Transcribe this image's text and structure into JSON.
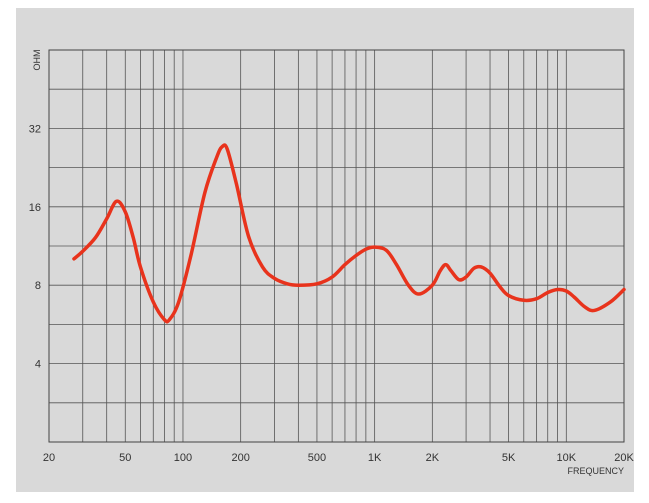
{
  "chart_data": {
    "type": "line",
    "title": "",
    "xlabel": "FREQUENCY",
    "ylabel": "OHM",
    "x_scale": "log",
    "y_scale": "log",
    "xlim": [
      20,
      20000
    ],
    "ylim": [
      2,
      64
    ],
    "x_tick_labels": [
      {
        "value": 20,
        "label": "20"
      },
      {
        "value": 50,
        "label": "50"
      },
      {
        "value": 100,
        "label": "100"
      },
      {
        "value": 200,
        "label": "200"
      },
      {
        "value": 500,
        "label": "500"
      },
      {
        "value": 1000,
        "label": "1K"
      },
      {
        "value": 2000,
        "label": "2K"
      },
      {
        "value": 5000,
        "label": "5K"
      },
      {
        "value": 10000,
        "label": "10K"
      },
      {
        "value": 20000,
        "label": "20K"
      }
    ],
    "y_tick_labels": [
      {
        "value": 4,
        "label": "4"
      },
      {
        "value": 8,
        "label": "8"
      },
      {
        "value": 16,
        "label": "16"
      },
      {
        "value": 32,
        "label": "32"
      }
    ],
    "grid": true,
    "line_color": "#e8331c",
    "series": [
      {
        "x": [
          27,
          30,
          35,
          40,
          45,
          50,
          55,
          60,
          70,
          80,
          85,
          95,
          110,
          130,
          150,
          160,
          170,
          190,
          220,
          260,
          300,
          350,
          400,
          500,
          600,
          700,
          800,
          900,
          1000,
          1150,
          1300,
          1500,
          1700,
          2000,
          2200,
          2350,
          2500,
          2750,
          3000,
          3300,
          3600,
          4000,
          4500,
          5000,
          6000,
          7000,
          8000,
          9000,
          10000,
          11000,
          12500,
          14000,
          17000,
          20000
        ],
        "y": [
          10.1,
          10.8,
          12.2,
          14.4,
          16.8,
          15.3,
          12.2,
          9.4,
          6.9,
          5.9,
          5.9,
          6.9,
          10.4,
          18.1,
          24.8,
          27.2,
          26.7,
          19.6,
          12.3,
          9.4,
          8.5,
          8.1,
          8.0,
          8.1,
          8.6,
          9.6,
          10.4,
          11.0,
          11.2,
          10.9,
          9.6,
          8.0,
          7.4,
          8.0,
          9.1,
          9.6,
          9.1,
          8.4,
          8.6,
          9.3,
          9.4,
          8.9,
          7.9,
          7.3,
          7.0,
          7.1,
          7.5,
          7.7,
          7.6,
          7.2,
          6.6,
          6.4,
          6.9,
          7.7
        ]
      }
    ]
  }
}
